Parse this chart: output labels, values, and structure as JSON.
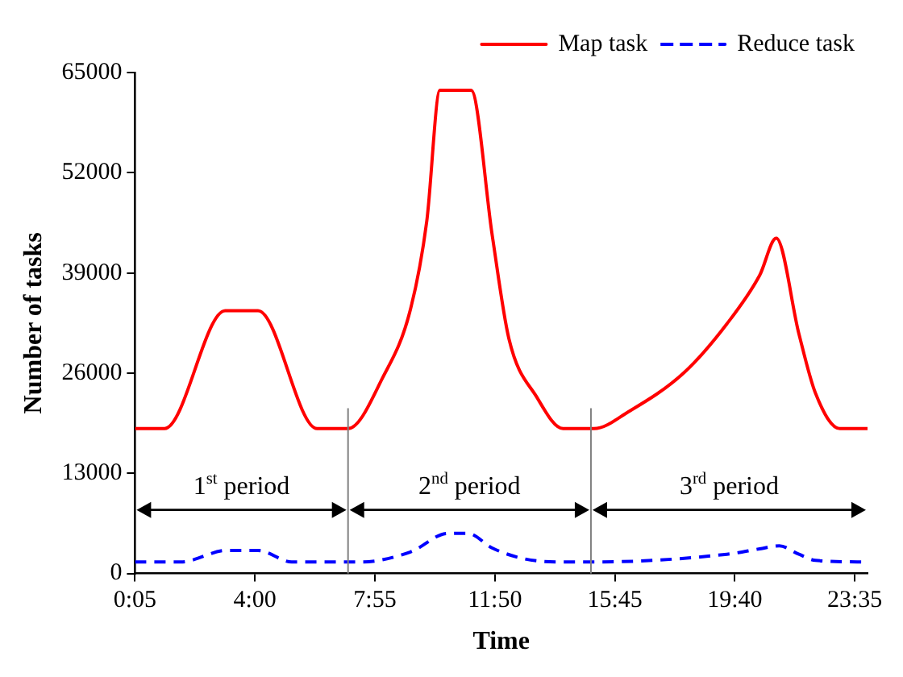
{
  "chart_data": {
    "type": "line",
    "xlabel": "Time",
    "ylabel": "Number of tasks",
    "xlim": [
      0.0833,
      24
    ],
    "ylim": [
      0,
      65000
    ],
    "xticks": [
      {
        "value": 0.0833,
        "label": "0:05"
      },
      {
        "value": 4,
        "label": "4:00"
      },
      {
        "value": 7.9167,
        "label": "7:55"
      },
      {
        "value": 11.8333,
        "label": "11:50"
      },
      {
        "value": 15.75,
        "label": "15:45"
      },
      {
        "value": 19.6667,
        "label": "19:40"
      },
      {
        "value": 23.5833,
        "label": "23:35"
      }
    ],
    "yticks": [
      0,
      13000,
      26000,
      39000,
      52000,
      65000
    ],
    "grid": false,
    "legend": "top right",
    "marker": "none",
    "series": [
      {
        "name": "Map task",
        "color": "#ff0000",
        "line_style": "solid",
        "x": [
          0.0833,
          1.05,
          3.03,
          4.1,
          6.03,
          7.04,
          8.17,
          9.08,
          9.61,
          10.04,
          11.06,
          11.75,
          12.29,
          13.2,
          14.06,
          14.97,
          15.07,
          16.2,
          18.02,
          19.41,
          20.48,
          21.02,
          21.76,
          22.3,
          23.1,
          24
        ],
        "values": [
          18800,
          18800,
          34100,
          34100,
          18800,
          18800,
          25400,
          34300,
          45700,
          62700,
          62700,
          43800,
          30500,
          22900,
          18800,
          18800,
          18800,
          21000,
          26100,
          32400,
          38700,
          43500,
          31100,
          23400,
          18800,
          18800
        ]
      },
      {
        "name": "Reduce task",
        "color": "#0000ff",
        "line_style": "dashed",
        "x": [
          0.0833,
          1.58,
          3.08,
          4.1,
          5.2,
          7.47,
          9.08,
          10.3,
          10.95,
          11.75,
          12.8,
          13.9,
          15.07,
          19.41,
          20.48,
          21.12,
          21.76,
          22.3,
          24
        ],
        "values": [
          1500,
          1500,
          3000,
          3000,
          1500,
          1500,
          2800,
          5200,
          5200,
          3300,
          1900,
          1500,
          1500,
          2500,
          3200,
          3600,
          2500,
          1700,
          1500
        ]
      }
    ],
    "ref_lines": [
      {
        "axis": "x",
        "value": 7.04,
        "label": null,
        "color": "#808080"
      },
      {
        "axis": "x",
        "value": 14.97,
        "label": null,
        "color": "#808080"
      }
    ],
    "annotations": [
      "1$^{st}$ period",
      "2$^{nd}$ period",
      "3$^{rd}$ period"
    ]
  }
}
